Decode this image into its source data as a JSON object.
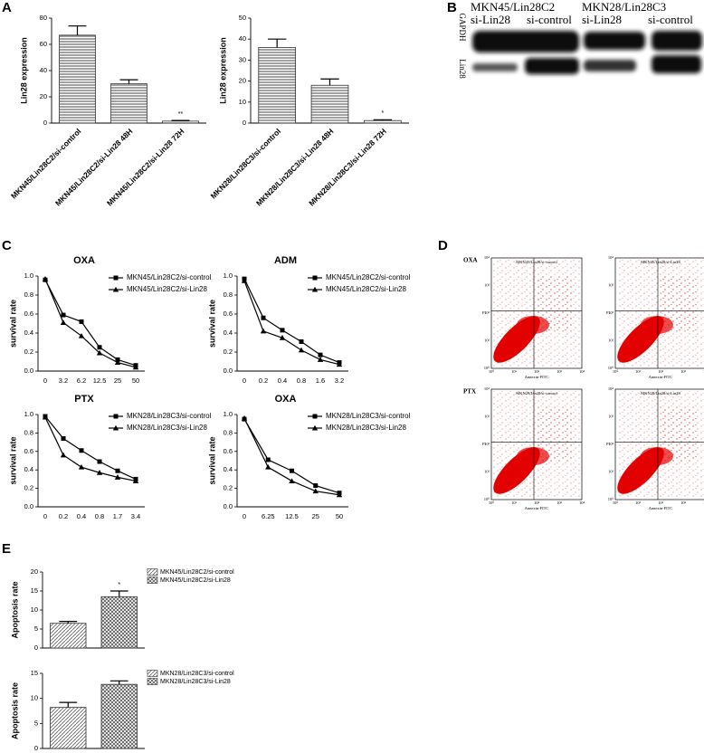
{
  "panel_labels": [
    "A",
    "B",
    "C",
    "D",
    "E"
  ],
  "chart_data": [
    {
      "type": "bar",
      "y_label": "Lin28 expression",
      "categories": [
        "MKN45/Lin28C2/si-control",
        "MKN45/Lin28C2/si-Lin28 48H",
        "MKN45/Lin28C2/si-Lin28 72H"
      ],
      "values": [
        67,
        30,
        1.5
      ],
      "errors": [
        7,
        3,
        0.5
      ],
      "significance": [
        null,
        null,
        "**"
      ],
      "hatch": "horizontal",
      "ylim": [
        0,
        80
      ],
      "yticks": [
        0,
        20,
        40,
        60,
        80
      ]
    },
    {
      "type": "bar",
      "y_label": "Lin28 expression",
      "categories": [
        "MKN28/Lin28C3/si-control",
        "MKN28/Lin28C3/si-Lin28 48H",
        "MKN28/Lin28C3/si-Lin28 72H"
      ],
      "values": [
        36,
        18,
        1.2
      ],
      "errors": [
        4,
        3,
        0.4
      ],
      "significance": [
        null,
        null,
        "*"
      ],
      "hatch": "horizontal",
      "ylim": [
        0,
        50
      ],
      "yticks": [
        0,
        10,
        20,
        30,
        40,
        50
      ]
    },
    {
      "type": "line",
      "title": "OXA",
      "y_label": "survival rate",
      "legend": "upper right",
      "categories": [
        "0",
        "3.2",
        "6.2",
        "12.5",
        "25",
        "50"
      ],
      "series": [
        {
          "name": "MKN45/Lin28C2/si-control",
          "color": "#000000",
          "marker": "square",
          "values": [
            0.96,
            0.59,
            0.52,
            0.25,
            0.12,
            0.06
          ]
        },
        {
          "name": "MKN45/Lin28C2/si-Lin28",
          "color": "#000000",
          "marker": "triangle",
          "values": [
            0.97,
            0.51,
            0.37,
            0.19,
            0.09,
            0.04
          ]
        }
      ],
      "ylim": [
        0,
        1
      ],
      "yticks": [
        {
          "value": 0,
          "label": "0.0"
        },
        0.2,
        0.4,
        0.6,
        0.8,
        {
          "value": 1,
          "label": "1.0"
        }
      ]
    },
    {
      "type": "line",
      "title": "ADM",
      "y_label": "survival rate",
      "legend": "upper right",
      "categories": [
        "0",
        "0.2",
        "0.4",
        "0.8",
        "1.6",
        "3.2"
      ],
      "series": [
        {
          "name": "MKN45/Lin28C2/si-control",
          "color": "#000000",
          "marker": "square",
          "values": [
            0.97,
            0.56,
            0.43,
            0.31,
            0.17,
            0.09
          ]
        },
        {
          "name": "MKN45/Lin28C2/si-Lin28",
          "color": "#000000",
          "marker": "triangle",
          "values": [
            0.95,
            0.42,
            0.35,
            0.22,
            0.12,
            0.07
          ]
        }
      ],
      "ylim": [
        0,
        1
      ],
      "yticks": [
        {
          "value": 0,
          "label": "0.0"
        },
        0.2,
        0.4,
        0.6,
        0.8,
        {
          "value": 1,
          "label": "1.0"
        }
      ]
    },
    {
      "type": "line",
      "title": "PTX",
      "y_label": "survival rate",
      "legend": "upper right",
      "categories": [
        "0",
        "0.2",
        "0.4",
        "0.8",
        "1.7",
        "3.4"
      ],
      "series": [
        {
          "name": "MKN28/Lin28C3/si-control",
          "color": "#000000",
          "marker": "square",
          "values": [
            0.98,
            0.74,
            0.61,
            0.49,
            0.39,
            0.3
          ]
        },
        {
          "name": "MKN28/Lin28C3/si-Lin28",
          "color": "#000000",
          "marker": "triangle",
          "values": [
            0.97,
            0.56,
            0.43,
            0.37,
            0.32,
            0.28
          ]
        }
      ],
      "ylim": [
        0,
        1
      ],
      "yticks": [
        {
          "value": 0,
          "label": "0.0"
        },
        0.2,
        0.4,
        0.6,
        0.8,
        {
          "value": 1,
          "label": "1.0"
        }
      ]
    },
    {
      "type": "line",
      "title": "OXA",
      "y_label": "survival rate",
      "legend": "upper right",
      "categories": [
        "0",
        "6.25",
        "12.5",
        "25",
        "50"
      ],
      "series": [
        {
          "name": "MKN28/Lin28C3/si-control",
          "color": "#000000",
          "marker": "square",
          "values": [
            0.95,
            0.51,
            0.39,
            0.23,
            0.15
          ]
        },
        {
          "name": "MKN28/Lin28C3/si-Lin28",
          "color": "#000000",
          "marker": "triangle",
          "values": [
            0.96,
            0.43,
            0.28,
            0.17,
            0.13
          ]
        }
      ],
      "ylim": [
        0,
        1
      ],
      "yticks": [
        {
          "value": 0,
          "label": "0.0"
        },
        0.2,
        0.4,
        0.6,
        0.8,
        {
          "value": 1,
          "label": "1.0"
        }
      ]
    },
    {
      "type": "bar",
      "y_label": "Apoptosis rate",
      "legend": "right",
      "series": [
        {
          "name": "MKN45/Lin28C2/si-control",
          "hatch": "diagonal",
          "values": [
            6.5
          ],
          "errors": [
            0.5
          ]
        },
        {
          "name": "MKN45/Lin28C2/si-Lin28",
          "hatch": "cross",
          "values": [
            13.5
          ],
          "errors": [
            1.5
          ],
          "significance": [
            "*"
          ]
        }
      ],
      "ylim": [
        0,
        20
      ],
      "yticks": [
        0,
        5,
        10,
        15,
        20
      ]
    },
    {
      "type": "bar",
      "y_label": "Apoptosis rate",
      "legend": "right",
      "series": [
        {
          "name": "MKN28/Lin28C3/si-control",
          "hatch": "diagonal",
          "values": [
            8.2
          ],
          "errors": [
            1.0
          ]
        },
        {
          "name": "MKN28/Lin28C3/si-Lin28",
          "hatch": "cross",
          "values": [
            12.8
          ],
          "errors": [
            0.7
          ]
        }
      ],
      "ylim": [
        0,
        15
      ],
      "yticks": [
        0,
        5,
        10,
        15
      ]
    }
  ],
  "blot": {
    "groups": [
      {
        "name": "MKN45/Lin28C2",
        "lanes": [
          "si-Lin28",
          "si-control"
        ]
      },
      {
        "name": "MKN28/Lin28C3",
        "lanes": [
          "si-Lin28",
          "si-control"
        ]
      }
    ],
    "rows": [
      "GAPDH",
      "Lin28"
    ]
  },
  "flow": {
    "rows": [
      {
        "label": "OXA",
        "plots": [
          "MKN45/Lin28/si-control",
          "MKN45/Lin28/si-Lin28"
        ]
      },
      {
        "label": "PTX",
        "plots": [
          "MKN28/Lin28/si-control",
          "MKN28/Lin28/si-Lin28"
        ]
      }
    ],
    "x_label": "Annexin-FITC",
    "y_label": "PI",
    "ticks": [
      "10⁰",
      "10¹",
      "10²",
      "10³",
      "10⁴"
    ]
  }
}
